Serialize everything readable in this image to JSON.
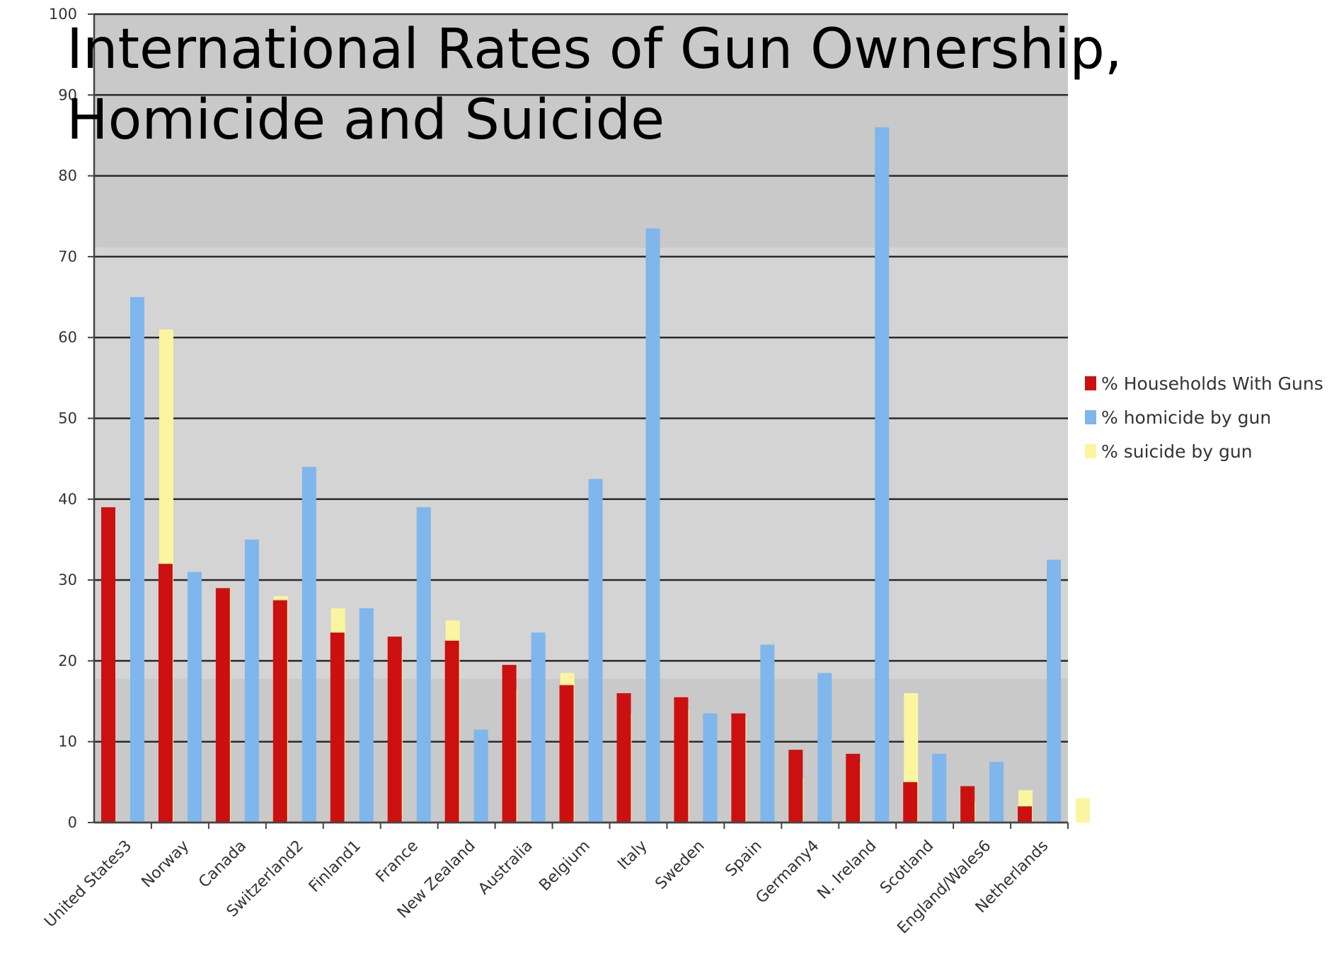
{
  "chart_data": {
    "type": "bar",
    "title": "International Rates of Gun Ownership, Homicide and Suicide",
    "title_lines": [
      "International Rates of Gun Ownership,",
      "Homicide and Suicide"
    ],
    "xlabel": "",
    "ylabel": "",
    "ylim": [
      0,
      100
    ],
    "yticks": [
      0,
      10,
      20,
      30,
      40,
      50,
      60,
      70,
      80,
      90,
      100
    ],
    "grid": true,
    "legend_position": "right",
    "categories": [
      "United States3",
      "Norway",
      "Canada",
      "Switzerland2",
      "Finland1",
      "France",
      "New Zealand",
      "Australia",
      "Belgium",
      "Italy",
      "Sweden",
      "Spain",
      "Germany4",
      "N. Ireland",
      "Scotland",
      "England/Wales6",
      "Netherlands"
    ],
    "series": [
      {
        "name": "% Households With Guns",
        "color": "#cc1010",
        "values": [
          39,
          32,
          29,
          27.5,
          23.5,
          23,
          22.5,
          19.5,
          17,
          16,
          15.5,
          13.5,
          9,
          8.5,
          5,
          4.5,
          2
        ]
      },
      {
        "name": "% homicide by gun",
        "color": "#7fb6ec",
        "values": [
          65,
          31,
          35,
          44,
          26.5,
          39,
          11.5,
          23.5,
          42.5,
          73.5,
          13.5,
          22,
          18.5,
          86,
          8.5,
          7.5,
          32.5
        ]
      },
      {
        "name": "% suicide by gun",
        "color": "#fbf5a0",
        "values": [
          61,
          29,
          28,
          26.5,
          21,
          25,
          16.5,
          18.5,
          13.5,
          14,
          13,
          5.5,
          7.5,
          16,
          2.5,
          4,
          3
        ]
      }
    ]
  }
}
